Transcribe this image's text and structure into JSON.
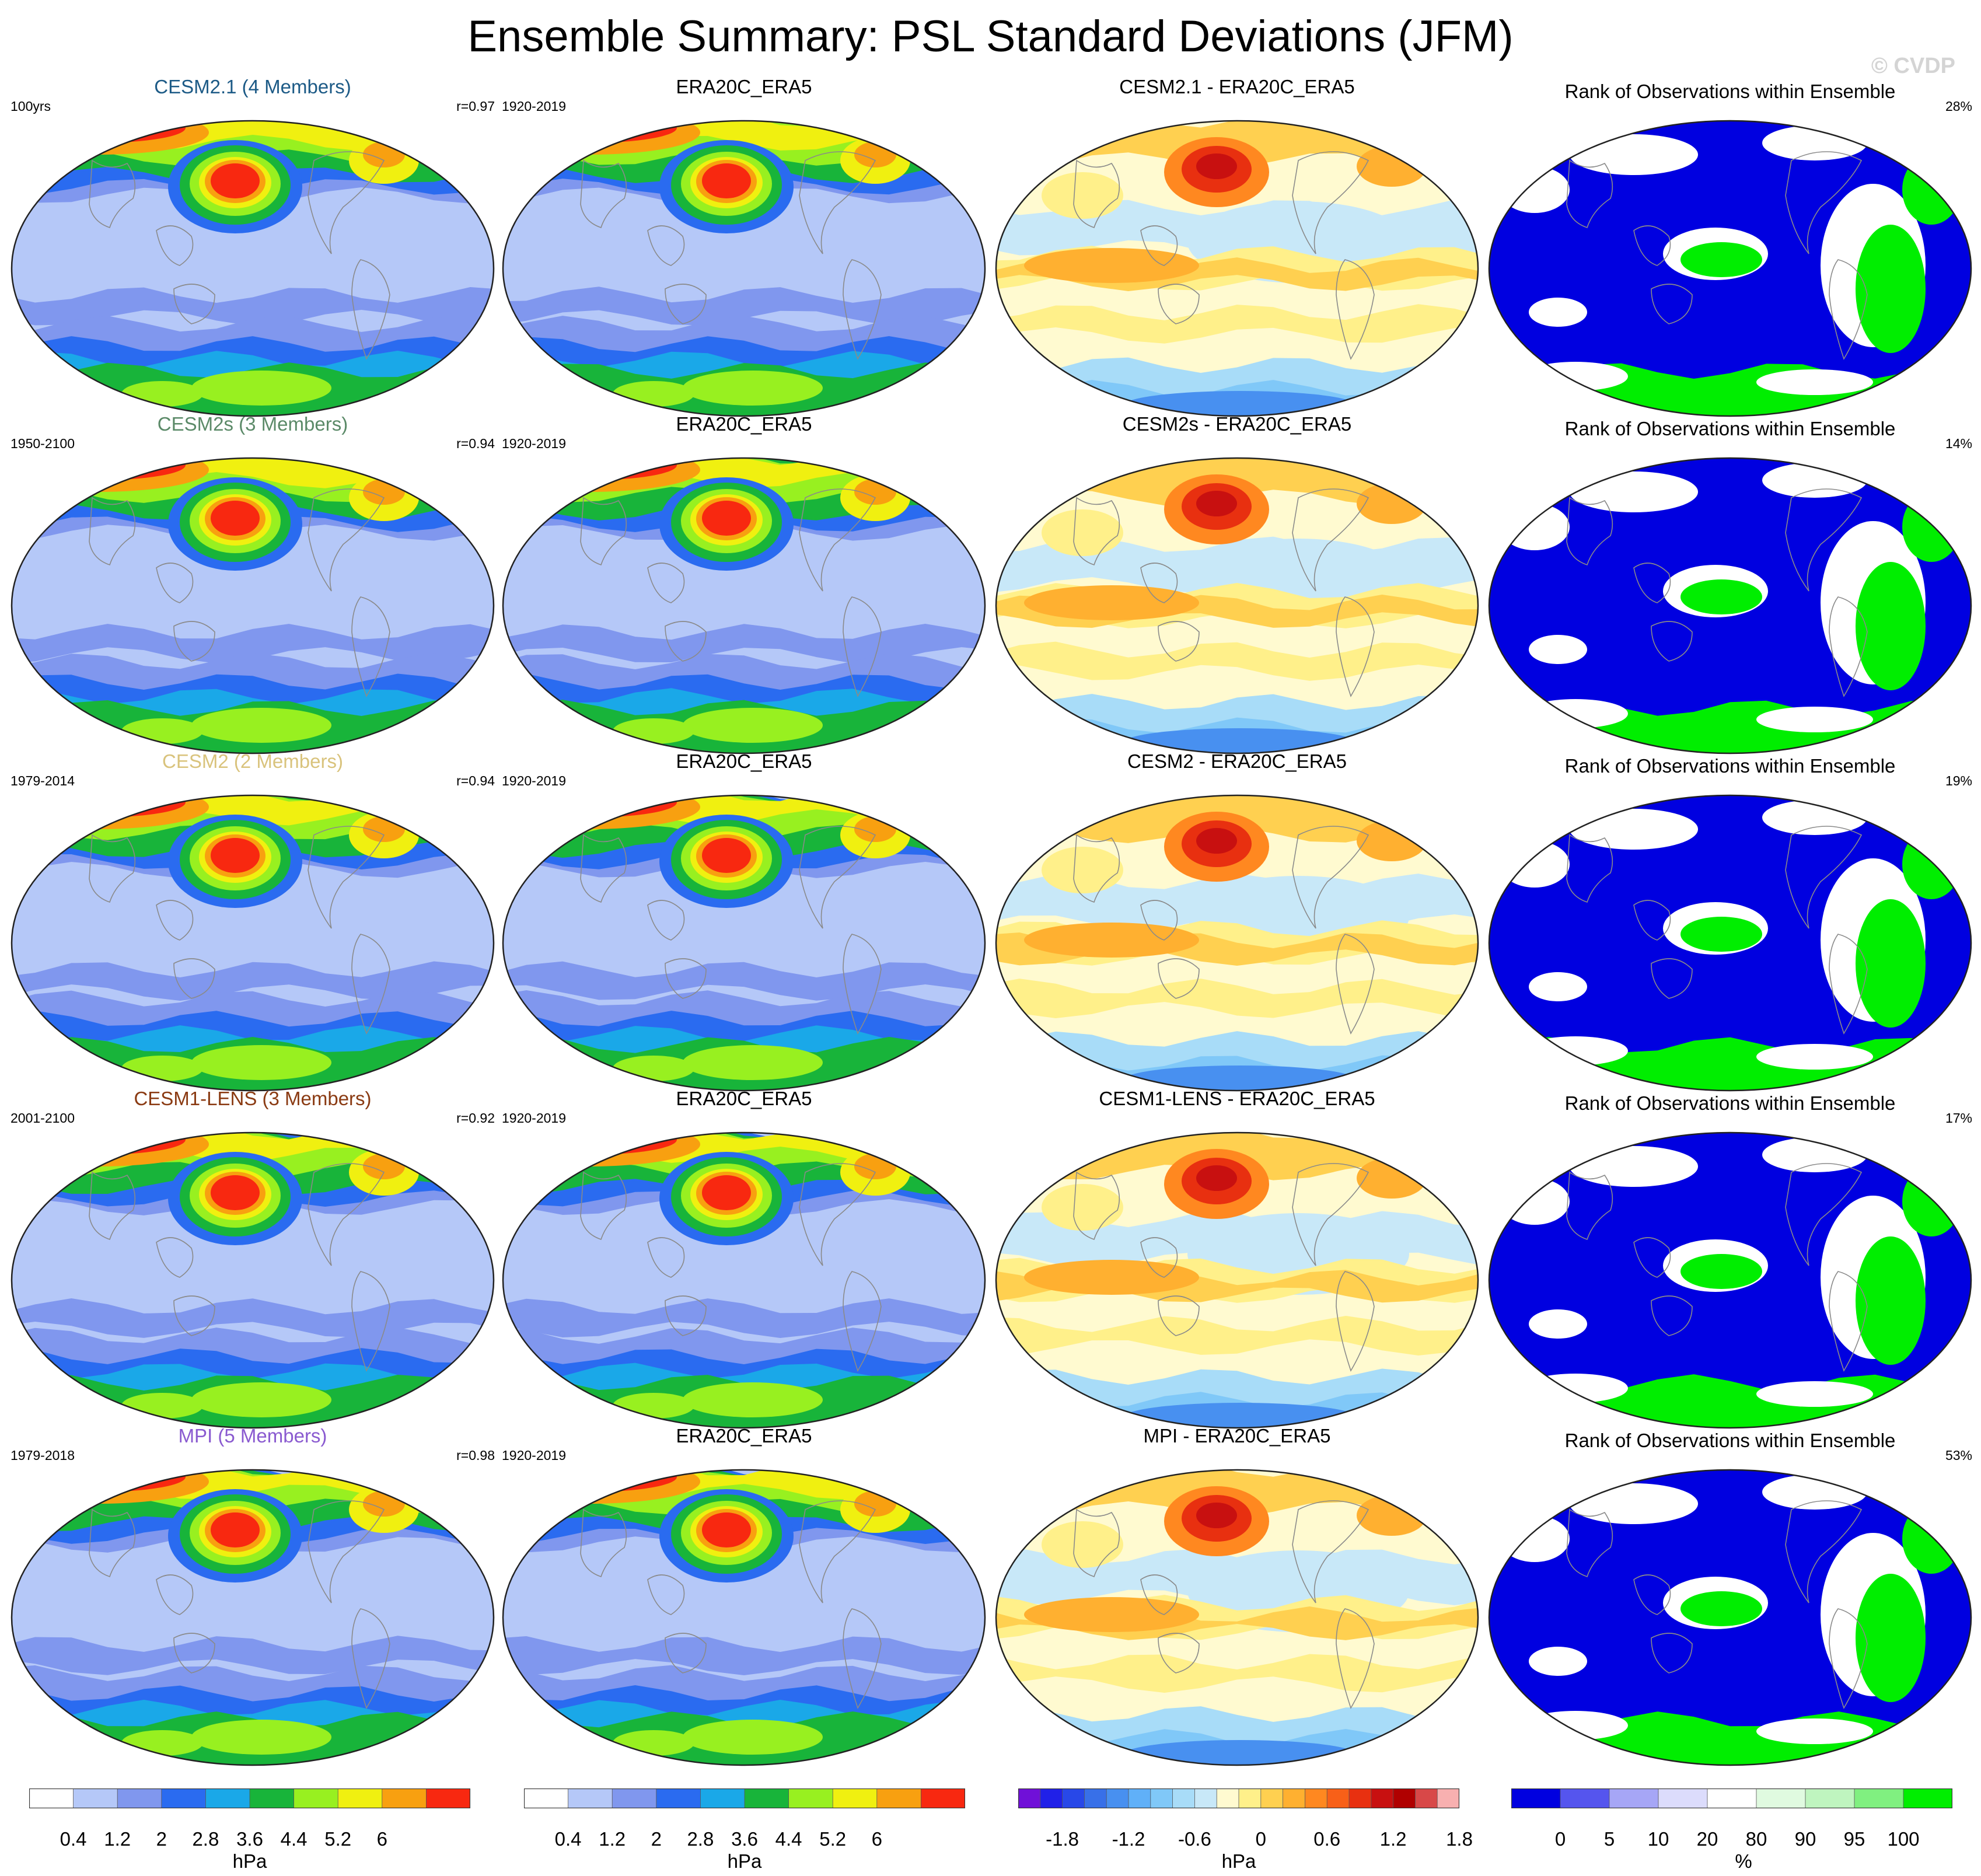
{
  "title": "Ensemble Summary: PSL Standard Deviations (JFM)",
  "watermark": "© CVDP",
  "rows": [
    {
      "model": {
        "title": "CESM2.1 (4 Members)",
        "title_color": "#1c5a86",
        "left": "100yrs",
        "right": "r=0.97"
      },
      "obs": {
        "title": "ERA20C_ERA5",
        "left": "1920-2019"
      },
      "diff": {
        "title": "CESM2.1 - ERA20C_ERA5"
      },
      "rank": {
        "title": "Rank of Observations within Ensemble",
        "right": "28%"
      }
    },
    {
      "model": {
        "title": "CESM2s (3 Members)",
        "title_color": "#5b8a68",
        "left": "1950-2100",
        "right": "r=0.94"
      },
      "obs": {
        "title": "ERA20C_ERA5",
        "left": "1920-2019"
      },
      "diff": {
        "title": "CESM2s - ERA20C_ERA5"
      },
      "rank": {
        "title": "Rank of Observations within Ensemble",
        "right": "14%"
      }
    },
    {
      "model": {
        "title": "CESM2 (2 Members)",
        "title_color": "#d9c37c",
        "left": "1979-2014",
        "right": "r=0.94"
      },
      "obs": {
        "title": "ERA20C_ERA5",
        "left": "1920-2019"
      },
      "diff": {
        "title": "CESM2 - ERA20C_ERA5"
      },
      "rank": {
        "title": "Rank of Observations within Ensemble",
        "right": "19%"
      }
    },
    {
      "model": {
        "title": "CESM1-LENS (3 Members)",
        "title_color": "#8a3a12",
        "left": "2001-2100",
        "right": "r=0.92"
      },
      "obs": {
        "title": "ERA20C_ERA5",
        "left": "1920-2019"
      },
      "diff": {
        "title": "CESM1-LENS - ERA20C_ERA5"
      },
      "rank": {
        "title": "Rank of Observations within Ensemble",
        "right": "17%"
      }
    },
    {
      "model": {
        "title": "MPI (5 Members)",
        "title_color": "#8a5ad0",
        "left": "1979-2018",
        "right": "r=0.98"
      },
      "obs": {
        "title": "ERA20C_ERA5",
        "left": "1920-2019"
      },
      "diff": {
        "title": "MPI - ERA20C_ERA5"
      },
      "rank": {
        "title": "Rank of Observations within Ensemble",
        "right": "53%"
      }
    }
  ],
  "chart_data": [
    {
      "type": "heatmap",
      "role": "colorbar-std",
      "unit": "hPa",
      "tick_labels": [
        "0.4",
        "1.2",
        "2",
        "2.8",
        "3.6",
        "4.4",
        "5.2",
        "6"
      ],
      "colors": [
        "#ffffff",
        "#b5c8f8",
        "#8097ee",
        "#2a6bf0",
        "#1aa8e8",
        "#18b43a",
        "#98f020",
        "#f0f010",
        "#f8a010",
        "#f82810"
      ]
    },
    {
      "type": "heatmap",
      "role": "colorbar-std",
      "unit": "hPa",
      "tick_labels": [
        "0.4",
        "1.2",
        "2",
        "2.8",
        "3.6",
        "4.4",
        "5.2",
        "6"
      ],
      "colors": [
        "#ffffff",
        "#b5c8f8",
        "#8097ee",
        "#2a6bf0",
        "#1aa8e8",
        "#18b43a",
        "#98f020",
        "#f0f010",
        "#f8a010",
        "#f82810"
      ]
    },
    {
      "type": "heatmap",
      "role": "colorbar-diff",
      "unit": "hPa",
      "tick_labels": [
        "-1.8",
        "-1.2",
        "-0.6",
        "0",
        "0.6",
        "1.2",
        "1.8"
      ],
      "colors": [
        "#7010d8",
        "#2020e8",
        "#2848e8",
        "#3870e8",
        "#4890f0",
        "#60b0f8",
        "#80c8f8",
        "#a8dcf8",
        "#c8e8f8",
        "#fffad0",
        "#fff08a",
        "#ffd050",
        "#ffb030",
        "#ff8820",
        "#f86018",
        "#e83010",
        "#c81010",
        "#b00000",
        "#d84848",
        "#f8b0b0"
      ]
    },
    {
      "type": "heatmap",
      "role": "colorbar-rank",
      "unit": "%",
      "tick_labels": [
        "0",
        "5",
        "10",
        "20",
        "80",
        "90",
        "95",
        "100"
      ],
      "colors": [
        "#0000e0",
        "#5555ee",
        "#a6a6f6",
        "#dcdcfc",
        "#ffffff",
        "#e0fae0",
        "#bff5bf",
        "#80f080",
        "#00ee00"
      ]
    }
  ]
}
